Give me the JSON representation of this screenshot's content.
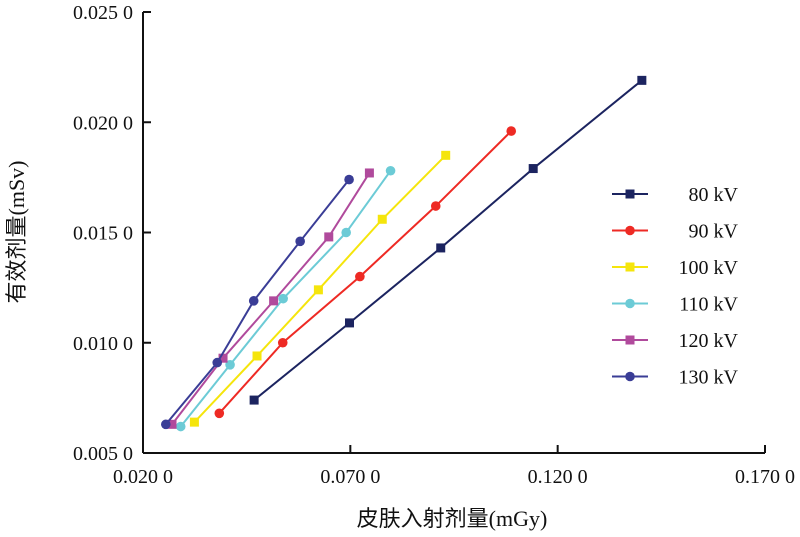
{
  "chart_data": {
    "type": "line",
    "xlabel": "皮肤入射剂量(mGy)",
    "ylabel": "有效剂量(mSv)",
    "xlim": [
      0.02,
      0.17
    ],
    "ylim": [
      0.005,
      0.025
    ],
    "xticks": [
      0.02,
      0.07,
      0.12,
      0.17
    ],
    "xtick_labels": [
      "0.020 0",
      "0.070 0",
      "0.120 0",
      "0.170 0"
    ],
    "yticks": [
      0.005,
      0.01,
      0.015,
      0.02,
      0.025
    ],
    "ytick_labels": [
      "0.005 0",
      "0.010 0",
      "0.015 0",
      "0.020 0",
      "0.025 0"
    ],
    "legend_position": "right",
    "series": [
      {
        "name": "80 kV",
        "color": "#1c2460",
        "marker": "square",
        "x": [
          0.0468,
          0.0698,
          0.0918,
          0.1141,
          0.1403
        ],
        "y": [
          0.0074,
          0.0109,
          0.0143,
          0.0179,
          0.0219
        ]
      },
      {
        "name": "90 kV",
        "color": "#ee2a24",
        "marker": "circle",
        "x": [
          0.0384,
          0.0537,
          0.0723,
          0.0906,
          0.1088
        ],
        "y": [
          0.0068,
          0.01,
          0.013,
          0.0162,
          0.0196
        ]
      },
      {
        "name": "100 kV",
        "color": "#f5e50c",
        "marker": "square",
        "x": [
          0.0324,
          0.0475,
          0.0623,
          0.0777,
          0.093
        ],
        "y": [
          0.0064,
          0.0094,
          0.0124,
          0.0156,
          0.0185
        ]
      },
      {
        "name": "110 kV",
        "color": "#6ccbd6",
        "marker": "circle",
        "x": [
          0.0291,
          0.041,
          0.0538,
          0.069,
          0.0797
        ],
        "y": [
          0.0062,
          0.009,
          0.012,
          0.015,
          0.0178
        ]
      },
      {
        "name": "120 kV",
        "color": "#b04a9c",
        "marker": "square",
        "x": [
          0.027,
          0.0393,
          0.0515,
          0.0648,
          0.0746
        ],
        "y": [
          0.0063,
          0.0093,
          0.0119,
          0.0148,
          0.0177
        ]
      },
      {
        "name": "130 kV",
        "color": "#3a3d96",
        "marker": "circle",
        "x": [
          0.0255,
          0.0379,
          0.0467,
          0.0579,
          0.0697
        ],
        "y": [
          0.0063,
          0.0091,
          0.0119,
          0.0146,
          0.0174
        ]
      }
    ]
  }
}
